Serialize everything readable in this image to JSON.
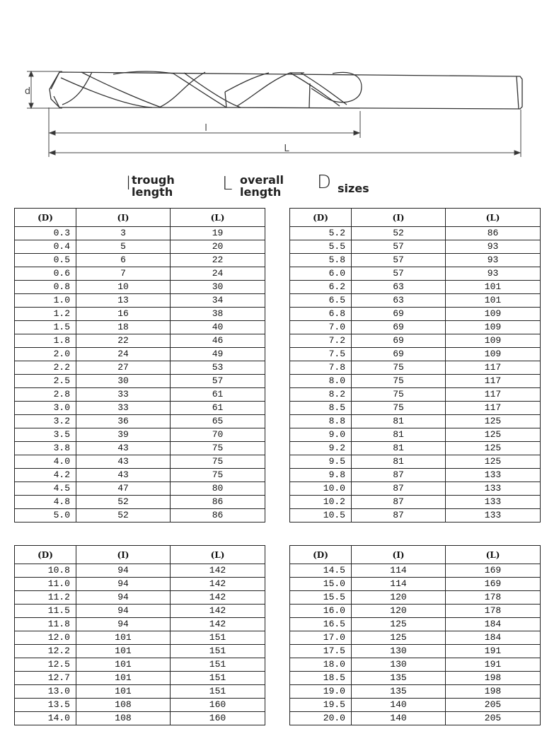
{
  "diagram": {
    "labels": {
      "diameter": "d",
      "trough": "l",
      "overall": "L"
    }
  },
  "legend": [
    {
      "mark": "l",
      "line1": "trough",
      "line2": "length"
    },
    {
      "mark": "L",
      "line1": "overall",
      "line2": "length"
    },
    {
      "mark": "D",
      "line1": "sizes",
      "line2": ""
    }
  ],
  "headers": [
    "(D)",
    "(I)",
    "(L)"
  ],
  "tables": [
    [
      [
        "0.3",
        "3",
        "19"
      ],
      [
        "0.4",
        "5",
        "20"
      ],
      [
        "0.5",
        "6",
        "22"
      ],
      [
        "0.6",
        "7",
        "24"
      ],
      [
        "0.8",
        "10",
        "30"
      ],
      [
        "1.0",
        "13",
        "34"
      ],
      [
        "1.2",
        "16",
        "38"
      ],
      [
        "1.5",
        "18",
        "40"
      ],
      [
        "1.8",
        "22",
        "46"
      ],
      [
        "2.0",
        "24",
        "49"
      ],
      [
        "2.2",
        "27",
        "53"
      ],
      [
        "2.5",
        "30",
        "57"
      ],
      [
        "2.8",
        "33",
        "61"
      ],
      [
        "3.0",
        "33",
        "61"
      ],
      [
        "3.2",
        "36",
        "65"
      ],
      [
        "3.5",
        "39",
        "70"
      ],
      [
        "3.8",
        "43",
        "75"
      ],
      [
        "4.0",
        "43",
        "75"
      ],
      [
        "4.2",
        "43",
        "75"
      ],
      [
        "4.5",
        "47",
        "80"
      ],
      [
        "4.8",
        "52",
        "86"
      ],
      [
        "5.0",
        "52",
        "86"
      ]
    ],
    [
      [
        "5.2",
        "52",
        "86"
      ],
      [
        "5.5",
        "57",
        "93"
      ],
      [
        "5.8",
        "57",
        "93"
      ],
      [
        "6.0",
        "57",
        "93"
      ],
      [
        "6.2",
        "63",
        "101"
      ],
      [
        "6.5",
        "63",
        "101"
      ],
      [
        "6.8",
        "69",
        "109"
      ],
      [
        "7.0",
        "69",
        "109"
      ],
      [
        "7.2",
        "69",
        "109"
      ],
      [
        "7.5",
        "69",
        "109"
      ],
      [
        "7.8",
        "75",
        "117"
      ],
      [
        "8.0",
        "75",
        "117"
      ],
      [
        "8.2",
        "75",
        "117"
      ],
      [
        "8.5",
        "75",
        "117"
      ],
      [
        "8.8",
        "81",
        "125"
      ],
      [
        "9.0",
        "81",
        "125"
      ],
      [
        "9.2",
        "81",
        "125"
      ],
      [
        "9.5",
        "81",
        "125"
      ],
      [
        "9.8",
        "87",
        "133"
      ],
      [
        "10.0",
        "87",
        "133"
      ],
      [
        "10.2",
        "87",
        "133"
      ],
      [
        "10.5",
        "87",
        "133"
      ]
    ],
    [
      [
        "10.8",
        "94",
        "142"
      ],
      [
        "11.0",
        "94",
        "142"
      ],
      [
        "11.2",
        "94",
        "142"
      ],
      [
        "11.5",
        "94",
        "142"
      ],
      [
        "11.8",
        "94",
        "142"
      ],
      [
        "12.0",
        "101",
        "151"
      ],
      [
        "12.2",
        "101",
        "151"
      ],
      [
        "12.5",
        "101",
        "151"
      ],
      [
        "12.7",
        "101",
        "151"
      ],
      [
        "13.0",
        "101",
        "151"
      ],
      [
        "13.5",
        "108",
        "160"
      ],
      [
        "14.0",
        "108",
        "160"
      ]
    ],
    [
      [
        "14.5",
        "114",
        "169"
      ],
      [
        "15.0",
        "114",
        "169"
      ],
      [
        "15.5",
        "120",
        "178"
      ],
      [
        "16.0",
        "120",
        "178"
      ],
      [
        "16.5",
        "125",
        "184"
      ],
      [
        "17.0",
        "125",
        "184"
      ],
      [
        "17.5",
        "130",
        "191"
      ],
      [
        "18.0",
        "130",
        "191"
      ],
      [
        "18.5",
        "135",
        "198"
      ],
      [
        "19.0",
        "135",
        "198"
      ],
      [
        "19.5",
        "140",
        "205"
      ],
      [
        "20.0",
        "140",
        "205"
      ]
    ]
  ]
}
